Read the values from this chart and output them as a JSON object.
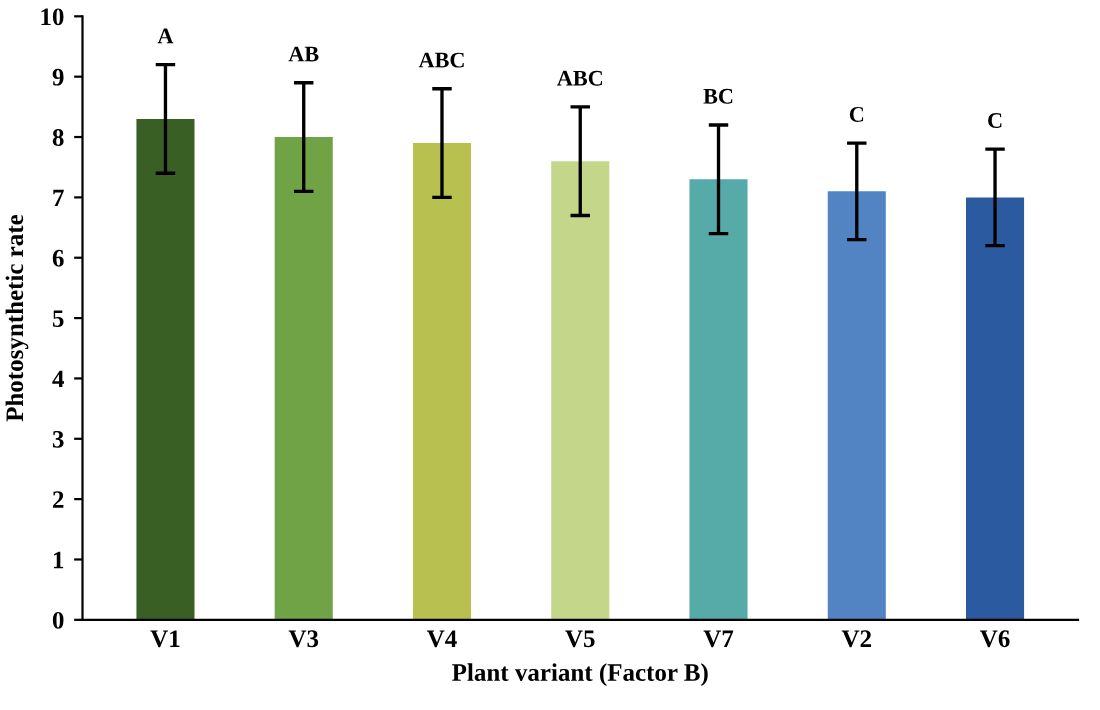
{
  "chart_data": {
    "type": "bar",
    "xlabel": "Plant variant (Factor B)",
    "ylabel": "Photosynthetic rate",
    "categories": [
      "V1",
      "V3",
      "V4",
      "V5",
      "V7",
      "V2",
      "V6"
    ],
    "values": [
      8.3,
      8.0,
      7.9,
      7.6,
      7.3,
      7.1,
      7.0
    ],
    "errors": [
      0.9,
      0.9,
      0.9,
      0.9,
      0.9,
      0.8,
      0.8
    ],
    "colors": [
      "#3a5f24",
      "#6fa345",
      "#b8c04f",
      "#c4d68a",
      "#56aaa8",
      "#5284c4",
      "#2c5aa0"
    ],
    "ylim": [
      0,
      10
    ],
    "yticks": [
      0,
      1,
      2,
      3,
      4,
      5,
      6,
      7,
      8,
      9,
      10
    ],
    "grid": false,
    "annotations": [
      "A",
      "AB",
      "ABC",
      "ABC",
      "BC",
      "C",
      "C"
    ]
  }
}
